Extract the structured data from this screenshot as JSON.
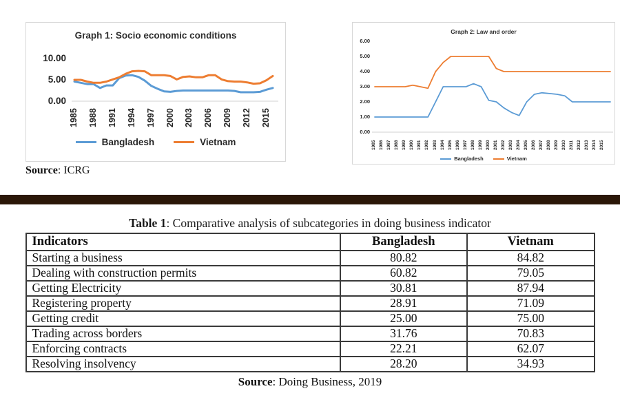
{
  "page": {
    "divider_color": "#2b1708"
  },
  "chart_data": [
    {
      "id": "graph1",
      "type": "line",
      "title": "Graph 1: Socio economic conditions",
      "source_label": "Source",
      "source_rest": ": ICRG",
      "x": [
        1985,
        1986,
        1987,
        1988,
        1989,
        1990,
        1991,
        1992,
        1993,
        1994,
        1995,
        1996,
        1997,
        1998,
        1999,
        2000,
        2001,
        2002,
        2003,
        2004,
        2005,
        2006,
        2007,
        2008,
        2009,
        2010,
        2011,
        2012,
        2013,
        2014,
        2015,
        2016
      ],
      "x_tick_labels": [
        "1985",
        "1988",
        "1991",
        "1994",
        "1997",
        "2000",
        "2003",
        "2006",
        "2009",
        "2012",
        "2015"
      ],
      "ylim": [
        0,
        10
      ],
      "y_ticks": [
        0,
        5,
        10
      ],
      "y_tick_labels": [
        "0.00",
        "5.00",
        "10.00"
      ],
      "grid": false,
      "legend_position": "bottom",
      "series": [
        {
          "name": "Bangladesh",
          "color": "#5B9BD5",
          "values": [
            4.6,
            4.3,
            4.0,
            4.0,
            3.1,
            3.7,
            3.7,
            5.4,
            6.0,
            6.1,
            5.7,
            4.8,
            3.6,
            2.9,
            2.3,
            2.2,
            2.4,
            2.5,
            2.5,
            2.5,
            2.5,
            2.5,
            2.5,
            2.5,
            2.5,
            2.4,
            2.1,
            2.1,
            2.1,
            2.2,
            2.7,
            3.1
          ]
        },
        {
          "name": "Vietnam",
          "color": "#ED7D31",
          "values": [
            5.0,
            5.0,
            4.6,
            4.3,
            4.3,
            4.6,
            5.1,
            5.6,
            6.4,
            7.0,
            7.1,
            7.0,
            6.1,
            6.1,
            6.1,
            5.9,
            5.1,
            5.7,
            5.8,
            5.6,
            5.6,
            6.1,
            6.1,
            5.1,
            4.7,
            4.6,
            4.6,
            4.4,
            4.1,
            4.2,
            4.9,
            5.9
          ]
        }
      ]
    },
    {
      "id": "graph2",
      "type": "line",
      "title": "Graph 2: Law and order",
      "x": [
        1985,
        1986,
        1987,
        1988,
        1989,
        1990,
        1991,
        1992,
        1993,
        1994,
        1995,
        1996,
        1997,
        1998,
        1999,
        2000,
        2001,
        2002,
        2003,
        2004,
        2005,
        2006,
        2007,
        2008,
        2009,
        2010,
        2011,
        2012,
        2013,
        2014,
        2015,
        2016
      ],
      "x_tick_labels": [
        "1985",
        "1986",
        "1987",
        "1988",
        "1989",
        "1990",
        "1991",
        "1992",
        "1993",
        "1994",
        "1995",
        "1996",
        "1997",
        "1998",
        "1999",
        "2000",
        "2001",
        "2002",
        "2003",
        "2004",
        "2005",
        "2006",
        "2007",
        "2008",
        "2009",
        "2010",
        "2011",
        "2012",
        "2013",
        "2014",
        "2015"
      ],
      "ylim": [
        0,
        6
      ],
      "y_ticks": [
        0,
        1,
        2,
        3,
        4,
        5,
        6
      ],
      "y_tick_labels": [
        "0.00",
        "1.00",
        "2.00",
        "3.00",
        "4.00",
        "5.00",
        "6.00"
      ],
      "grid": false,
      "legend_position": "bottom",
      "series": [
        {
          "name": "Bangladesh",
          "color": "#5B9BD5",
          "values": [
            1.0,
            1.0,
            1.0,
            1.0,
            1.0,
            1.0,
            1.0,
            1.0,
            2.0,
            3.0,
            3.0,
            3.0,
            3.0,
            3.2,
            3.0,
            2.1,
            2.0,
            1.6,
            1.3,
            1.1,
            2.0,
            2.5,
            2.6,
            2.55,
            2.5,
            2.4,
            2.0,
            2.0,
            2.0,
            2.0,
            2.0,
            2.0
          ]
        },
        {
          "name": "Vietnam",
          "color": "#ED7D31",
          "values": [
            3.0,
            3.0,
            3.0,
            3.0,
            3.0,
            3.1,
            3.0,
            2.9,
            4.0,
            4.6,
            5.0,
            5.0,
            5.0,
            5.0,
            5.0,
            5.0,
            4.2,
            4.0,
            4.0,
            4.0,
            4.0,
            4.0,
            4.0,
            4.0,
            4.0,
            4.0,
            4.0,
            4.0,
            4.0,
            4.0,
            4.0,
            4.0
          ]
        }
      ]
    }
  ],
  "table": {
    "title_bold": "Table 1",
    "title_rest": ": Comparative analysis of subcategories in doing business indicator",
    "headers": [
      "Indicators",
      "Bangladesh",
      "Vietnam"
    ],
    "rows": [
      {
        "indicator": "Starting a business",
        "bangladesh": "80.82",
        "vietnam": "84.82"
      },
      {
        "indicator": "Dealing with construction permits",
        "bangladesh": "60.82",
        "vietnam": "79.05"
      },
      {
        "indicator": "Getting Electricity",
        "bangladesh": "30.81",
        "vietnam": "87.94"
      },
      {
        "indicator": "Registering property",
        "bangladesh": "28.91",
        "vietnam": "71.09"
      },
      {
        "indicator": "Getting credit",
        "bangladesh": "25.00",
        "vietnam": "75.00"
      },
      {
        "indicator": "Trading across borders",
        "bangladesh": "31.76",
        "vietnam": "70.83"
      },
      {
        "indicator": "Enforcing contracts",
        "bangladesh": "22.21",
        "vietnam": "62.07"
      },
      {
        "indicator": "Resolving insolvency",
        "bangladesh": "28.20",
        "vietnam": "34.93"
      }
    ],
    "source_bold": "Source",
    "source_rest": ": Doing Business, 2019"
  }
}
